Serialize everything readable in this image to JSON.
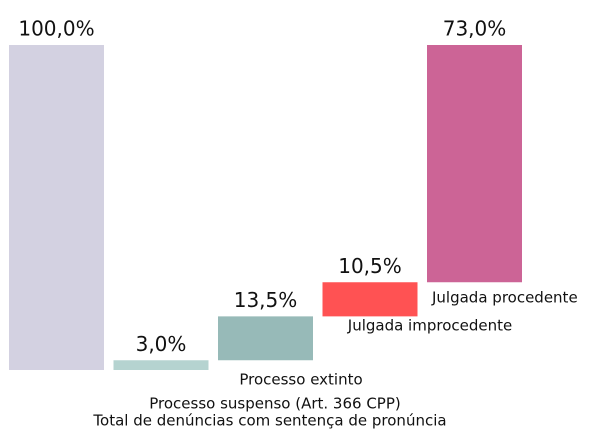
{
  "chart_data": {
    "type": "waterfall",
    "categories": [
      "Total de denúncias com sentença de pronúncia",
      "Processo suspenso (Art. 366 CPP)",
      "Processo extinto",
      "Julgada improcedente",
      "Julgada procedente"
    ],
    "values": [
      100,
      3,
      13.5,
      10.5,
      73
    ],
    "value_labels": [
      "100,0%",
      "3,0%",
      "13,5%",
      "10,5%",
      "73,0%"
    ],
    "colors": [
      "#d3d1e1",
      "#b5d3d0",
      "#97bab8",
      "#ff5253",
      "#cc6496"
    ]
  }
}
